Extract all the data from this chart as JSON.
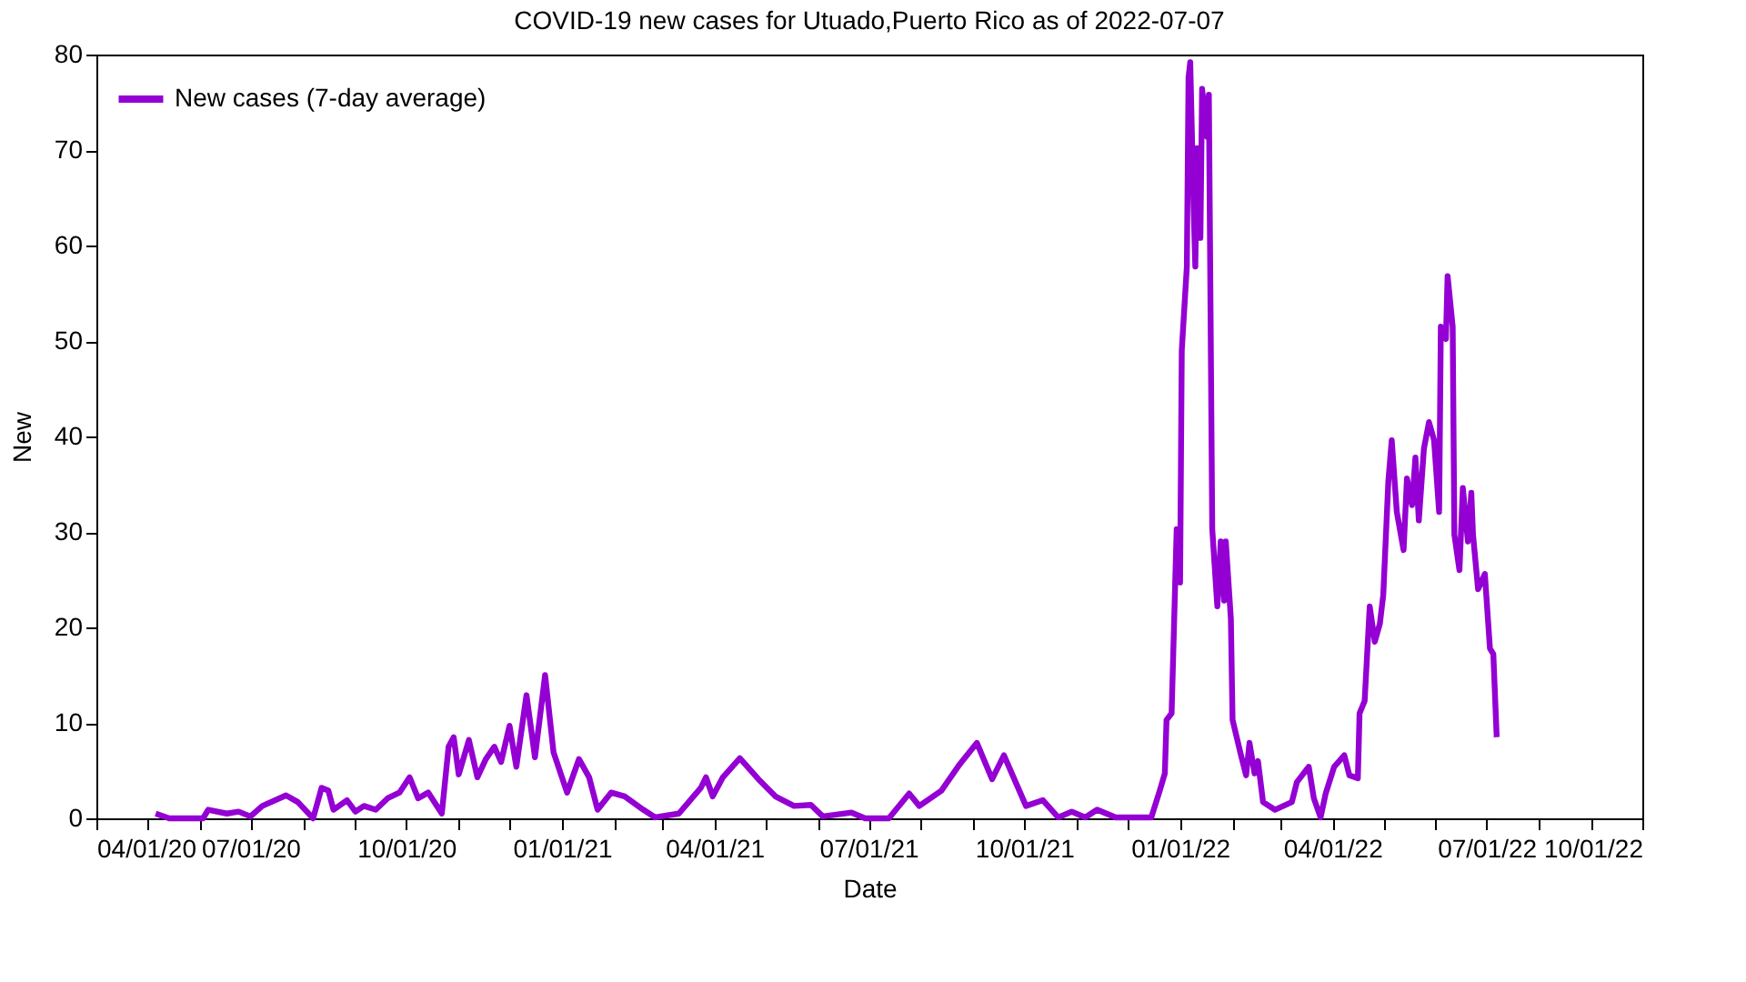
{
  "chart_data": {
    "type": "line",
    "title": "COVID-19 new cases for Utuado,Puerto Rico as of 2022-07-07",
    "xlabel": "Date",
    "ylabel": "New",
    "x": [
      "2020-05-06",
      "2020-05-14",
      "2020-06-03",
      "2020-06-06",
      "2020-06-17",
      "2020-06-24",
      "2020-07-01",
      "2020-07-08",
      "2020-07-22",
      "2020-07-29",
      "2020-08-07",
      "2020-08-12",
      "2020-08-16",
      "2020-08-19",
      "2020-08-27",
      "2020-09-01",
      "2020-09-06",
      "2020-09-13",
      "2020-09-20",
      "2020-09-27",
      "2020-10-03",
      "2020-10-08",
      "2020-10-14",
      "2020-10-22",
      "2020-10-26",
      "2020-10-29",
      "2020-11-01",
      "2020-11-07",
      "2020-11-12",
      "2020-11-17",
      "2020-11-22",
      "2020-11-26",
      "2020-12-01",
      "2020-12-05",
      "2020-12-11",
      "2020-12-16",
      "2020-12-22",
      "2020-12-27",
      "2021-01-04",
      "2021-01-11",
      "2021-01-17",
      "2021-01-22",
      "2021-01-30",
      "2021-02-07",
      "2021-02-18",
      "2021-02-25",
      "2021-03-11",
      "2021-03-24",
      "2021-03-27",
      "2021-03-31",
      "2021-04-06",
      "2021-04-16",
      "2021-04-27",
      "2021-05-07",
      "2021-05-18",
      "2021-05-28",
      "2021-06-04",
      "2021-06-21",
      "2021-06-29",
      "2021-07-13",
      "2021-07-25",
      "2021-07-31",
      "2021-08-13",
      "2021-08-24",
      "2021-09-03",
      "2021-09-12",
      "2021-09-19",
      "2021-10-02",
      "2021-10-12",
      "2021-10-21",
      "2021-10-29",
      "2021-11-06",
      "2021-11-13",
      "2021-11-24",
      "2021-12-15",
      "2021-12-20",
      "2021-12-23",
      "2021-12-24",
      "2021-12-27",
      "2021-12-30",
      "2022-01-01",
      "2022-01-02",
      "2022-01-05",
      "2022-01-06",
      "2022-01-07",
      "2022-01-09",
      "2022-01-10",
      "2022-01-11",
      "2022-01-13",
      "2022-01-14",
      "2022-01-17",
      "2022-01-18",
      "2022-01-20",
      "2022-01-23",
      "2022-01-25",
      "2022-01-27",
      "2022-01-28",
      "2022-01-31",
      "2022-02-01",
      "2022-02-06",
      "2022-02-09",
      "2022-02-11",
      "2022-02-14",
      "2022-02-16",
      "2022-02-19",
      "2022-02-26",
      "2022-03-08",
      "2022-03-11",
      "2022-03-18",
      "2022-03-21",
      "2022-03-25",
      "2022-03-28",
      "2022-04-02",
      "2022-04-08",
      "2022-04-11",
      "2022-04-16",
      "2022-04-17",
      "2022-04-20",
      "2022-04-23",
      "2022-04-26",
      "2022-04-29",
      "2022-05-01",
      "2022-05-04",
      "2022-05-06",
      "2022-05-09",
      "2022-05-13",
      "2022-05-15",
      "2022-05-18",
      "2022-05-20",
      "2022-05-22",
      "2022-05-25",
      "2022-05-28",
      "2022-05-31",
      "2022-06-03",
      "2022-06-04",
      "2022-06-07",
      "2022-06-08",
      "2022-06-11",
      "2022-06-12",
      "2022-06-15",
      "2022-06-17",
      "2022-06-20",
      "2022-06-22",
      "2022-06-23",
      "2022-06-26",
      "2022-06-30",
      "2022-07-03",
      "2022-07-05",
      "2022-07-07"
    ],
    "series": [
      {
        "name": "New cases (7-day average)",
        "color": "#9400d3",
        "values": [
          0.5,
          0,
          0,
          0.9,
          0.5,
          0.7,
          0.2,
          1.3,
          2.4,
          1.7,
          0,
          3.2,
          2.9,
          0.9,
          1.9,
          0.7,
          1.3,
          0.9,
          2.1,
          2.7,
          4.3,
          2.1,
          2.7,
          0.5,
          7.5,
          8.5,
          4.6,
          8.2,
          4.3,
          6.2,
          7.5,
          5.9,
          9.7,
          5.4,
          12.9,
          6.4,
          15.0,
          6.9,
          2.7,
          6.2,
          4.3,
          0.9,
          2.7,
          2.3,
          0.9,
          0.1,
          0.5,
          3.2,
          4.3,
          2.3,
          4.3,
          6.3,
          4.1,
          2.3,
          1.3,
          1.4,
          0.2,
          0.6,
          0,
          0,
          2.6,
          1.3,
          2.9,
          5.7,
          7.9,
          4.1,
          6.6,
          1.3,
          1.9,
          0.1,
          0.7,
          0.1,
          0.9,
          0.1,
          0.1,
          2.9,
          4.7,
          10.3,
          11.0,
          30.3,
          24.7,
          49,
          57.8,
          77.6,
          79.2,
          63.9,
          57.8,
          70.2,
          60.8,
          76.4,
          71.4,
          75.8,
          30.3,
          22.2,
          29.0,
          22.8,
          29.0,
          20.9,
          10.3,
          6.6,
          4.5,
          7.9,
          4.7,
          6.0,
          1.7,
          0.9,
          1.7,
          3.8,
          5.4,
          2.1,
          0.1,
          2.6,
          5.4,
          6.6,
          4.5,
          4.2,
          11.0,
          12.3,
          22.2,
          18.5,
          20.4,
          23.4,
          35.3,
          39.6,
          32.1,
          28.1,
          35.6,
          32.8,
          37.8,
          31.2,
          38.7,
          41.5,
          39.6,
          32.1,
          51.5,
          50.2,
          56.8,
          51.5,
          29.7,
          26.0,
          34.6,
          29.0,
          34.1,
          29.7,
          24.0,
          25.6,
          17.8,
          17.2,
          8.5
        ]
      }
    ],
    "xlim": [
      "2020-04-01",
      "2022-10-01"
    ],
    "xticks": [
      {
        "value": "2020-04-01",
        "label": "04/01/20"
      },
      {
        "value": "2020-05-01",
        "label": null
      },
      {
        "value": "2020-06-01",
        "label": null
      },
      {
        "value": "2020-07-01",
        "label": "07/01/20"
      },
      {
        "value": "2020-08-01",
        "label": null
      },
      {
        "value": "2020-09-01",
        "label": null
      },
      {
        "value": "2020-10-01",
        "label": "10/01/20"
      },
      {
        "value": "2020-11-01",
        "label": null
      },
      {
        "value": "2020-12-01",
        "label": null
      },
      {
        "value": "2021-01-01",
        "label": "01/01/21"
      },
      {
        "value": "2021-02-01",
        "label": null
      },
      {
        "value": "2021-03-01",
        "label": null
      },
      {
        "value": "2021-04-01",
        "label": "04/01/21"
      },
      {
        "value": "2021-05-01",
        "label": null
      },
      {
        "value": "2021-06-01",
        "label": null
      },
      {
        "value": "2021-07-01",
        "label": "07/01/21"
      },
      {
        "value": "2021-08-01",
        "label": null
      },
      {
        "value": "2021-09-01",
        "label": null
      },
      {
        "value": "2021-10-01",
        "label": "10/01/21"
      },
      {
        "value": "2021-11-01",
        "label": null
      },
      {
        "value": "2021-12-01",
        "label": null
      },
      {
        "value": "2022-01-01",
        "label": "01/01/22"
      },
      {
        "value": "2022-02-01",
        "label": null
      },
      {
        "value": "2022-03-01",
        "label": null
      },
      {
        "value": "2022-04-01",
        "label": "04/01/22"
      },
      {
        "value": "2022-05-01",
        "label": null
      },
      {
        "value": "2022-06-01",
        "label": null
      },
      {
        "value": "2022-07-01",
        "label": "07/01/22"
      },
      {
        "value": "2022-08-01",
        "label": null
      },
      {
        "value": "2022-09-01",
        "label": null
      },
      {
        "value": "2022-10-01",
        "label": "10/01/22"
      }
    ],
    "ylim": [
      0,
      80
    ],
    "yticks": [
      0,
      10,
      20,
      30,
      40,
      50,
      60,
      70,
      80
    ],
    "grid": false,
    "legend": "top left",
    "marker": "none",
    "line_style": "solid"
  }
}
